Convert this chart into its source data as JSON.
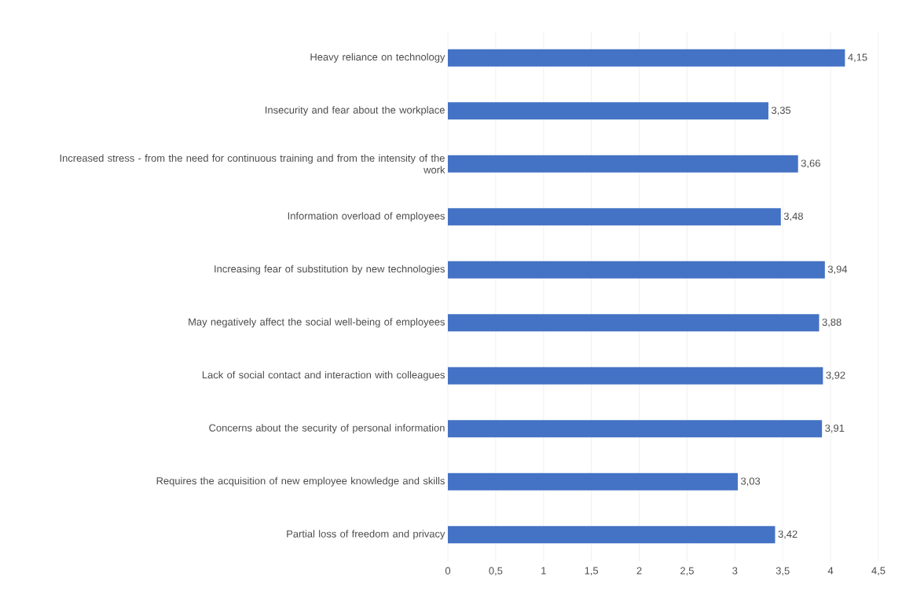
{
  "chart_data": {
    "type": "bar",
    "orientation": "horizontal",
    "color": "#4472c4",
    "grid": "x",
    "categories": [
      "Heavy reliance on technology",
      "Insecurity and fear about the workplace",
      "Increased stress - from the need for continuous training and from the intensity of the work",
      "Information overload of employees",
      "Increasing fear of substitution by new technologies",
      "May negatively affect the social well-being of employees",
      "Lack of social contact and interaction with colleagues",
      "Concerns about the security of personal information",
      "Requires the acquisition of new employee knowledge and skills",
      "Partial loss of freedom and privacy"
    ],
    "values": [
      4.15,
      3.35,
      3.66,
      3.48,
      3.94,
      3.88,
      3.92,
      3.91,
      3.03,
      3.42
    ],
    "value_labels": [
      "4,15",
      "3,35",
      "3,66",
      "3,48",
      "3,94",
      "3,88",
      "3,92",
      "3,91",
      "3,03",
      "3,42"
    ],
    "xlim": [
      0,
      4.5
    ],
    "xticks": [
      0,
      {
        "value": 0.5,
        "label": "0,5"
      },
      1,
      {
        "value": 1.5,
        "label": "1,5"
      },
      2,
      {
        "value": 2.5,
        "label": "2,5"
      },
      3,
      {
        "value": 3.5,
        "label": "3,5"
      },
      4,
      {
        "value": 4.5,
        "label": "4,5"
      }
    ]
  }
}
